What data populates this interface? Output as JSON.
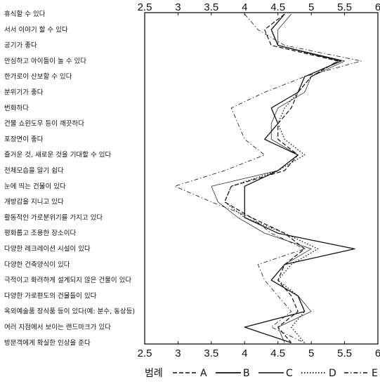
{
  "chart_data": {
    "type": "line",
    "orientation": "vertical-profile",
    "xlim": [
      2.5,
      6
    ],
    "xticks": [
      "2.5",
      "3",
      "3.5",
      "4",
      "4.5",
      "5",
      "5.5",
      "6"
    ],
    "grid": false,
    "legend_position": "bottom",
    "legend_title": "범례",
    "categories": [
      "휴식할 수 있다",
      "서서 이야기 할 수 있다",
      "공기가 좋다",
      "안심하고 아이들이 놀 수 있다",
      "한가로이 산보할 수 있다",
      "분위기가 좋다",
      "번화하다",
      "건물 쇼윈도우 등이 깨끗하다",
      "포장면이 좋다",
      "즐거운 것, 새로운 것을 기대할 수 있다",
      "전체모습을 알기 쉽다",
      "눈에 띄는 건물이 있다",
      "개방감을 지니고 있다",
      "활동적인 가로분위기를 가지고 있다",
      "평화롭고 조용한 장소이다",
      "다양한 레크레이션 시설이 있다",
      "다양한 건축양식이 있다",
      "극적이고 화려하게 설계되지 않은 건물이 있다",
      "다양한 가로편도의 건물들이 있다",
      "옥외예술품 장식품 등이 있다(예: 분수, 동상등)",
      "여러 지점에서 보이는 랜드마크가 있다",
      "방문객에게 확실한 인상을 준다"
    ],
    "series": [
      {
        "name": "A",
        "style": "dashed",
        "values": [
          4.6,
          4.3,
          4.4,
          5.4,
          5.0,
          4.8,
          4.7,
          4.5,
          4.5,
          4.8,
          4.6,
          3.8,
          3.7,
          4.1,
          4.6,
          4.9,
          4.6,
          4.5,
          4.7,
          4.8,
          4.5,
          4.7
        ]
      },
      {
        "name": "B",
        "style": "solid",
        "values": [
          4.6,
          4.4,
          4.5,
          5.45,
          4.9,
          4.8,
          4.4,
          4.5,
          4.3,
          4.8,
          4.5,
          4.0,
          4.0,
          4.0,
          4.5,
          5.65,
          4.6,
          4.4,
          4.8,
          4.9,
          4.0,
          4.7
        ]
      },
      {
        "name": "C",
        "style": "thin",
        "values": [
          4.7,
          4.5,
          4.5,
          5.5,
          5.0,
          4.9,
          4.5,
          4.4,
          4.4,
          4.8,
          4.5,
          3.5,
          3.6,
          3.9,
          4.3,
          5.0,
          4.6,
          4.4,
          4.8,
          5.0,
          4.5,
          4.6
        ]
      },
      {
        "name": "D",
        "style": "dotted",
        "values": [
          4.6,
          4.4,
          4.5,
          5.4,
          5.0,
          4.8,
          4.6,
          4.5,
          4.6,
          4.9,
          4.5,
          3.8,
          3.7,
          4.0,
          4.6,
          5.1,
          4.7,
          4.5,
          4.8,
          4.9,
          4.7,
          4.9
        ]
      },
      {
        "name": "E",
        "style": "dash-dot",
        "values": [
          4.0,
          4.2,
          4.6,
          5.75,
          4.9,
          4.3,
          3.8,
          3.9,
          4.0,
          4.3,
          3.7,
          2.95,
          3.5,
          4.1,
          4.4,
          4.9,
          4.2,
          4.3,
          4.5,
          4.7,
          4.4,
          4.9
        ]
      }
    ]
  }
}
